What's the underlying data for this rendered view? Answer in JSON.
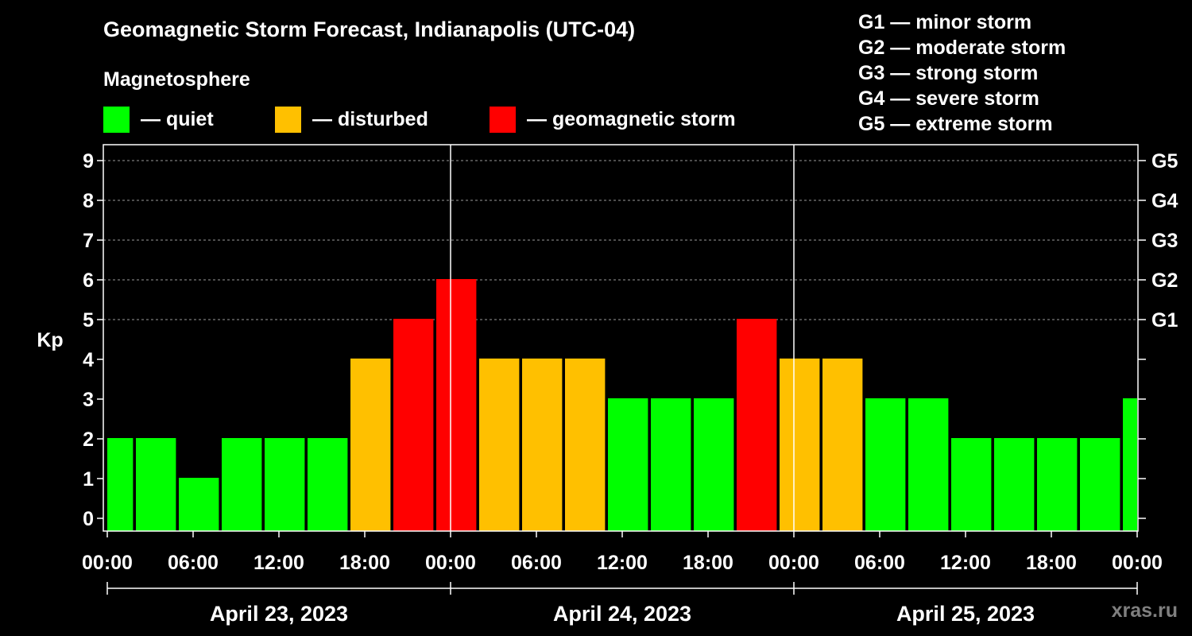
{
  "chart_data": {
    "type": "bar",
    "title": "Geomagnetic Storm Forecast, Indianapolis (UTC-04)",
    "subtitle": "Magnetosphere",
    "ylabel": "Kp",
    "ylim": [
      0,
      9
    ],
    "yticks": [
      "0",
      "1",
      "2",
      "3",
      "4",
      "5",
      "6",
      "7",
      "8",
      "9"
    ],
    "right_ticks": [
      {
        "kp": 5,
        "label": "G1"
      },
      {
        "kp": 6,
        "label": "G2"
      },
      {
        "kp": 7,
        "label": "G3"
      },
      {
        "kp": 8,
        "label": "G4"
      },
      {
        "kp": 9,
        "label": "G5"
      }
    ],
    "legend": [
      {
        "label": "— quiet",
        "color": "#00ff00"
      },
      {
        "label": "— disturbed",
        "color": "#ffc000"
      },
      {
        "label": "— geomagnetic storm",
        "color": "#ff0000"
      }
    ],
    "storm_levels": [
      "G1 — minor storm",
      "G2 — moderate storm",
      "G3 — strong storm",
      "G4 — severe storm",
      "G5 — extreme storm"
    ],
    "x_range_hours": [
      0,
      72
    ],
    "bar_width_hours": 3,
    "xticks": [
      {
        "h": 0,
        "label": "00:00"
      },
      {
        "h": 6,
        "label": "06:00"
      },
      {
        "h": 12,
        "label": "12:00"
      },
      {
        "h": 18,
        "label": "18:00"
      },
      {
        "h": 24,
        "label": "00:00"
      },
      {
        "h": 30,
        "label": "06:00"
      },
      {
        "h": 36,
        "label": "12:00"
      },
      {
        "h": 42,
        "label": "18:00"
      },
      {
        "h": 48,
        "label": "00:00"
      },
      {
        "h": 54,
        "label": "06:00"
      },
      {
        "h": 60,
        "label": "12:00"
      },
      {
        "h": 66,
        "label": "18:00"
      },
      {
        "h": 72,
        "label": "00:00"
      }
    ],
    "days": [
      {
        "start_h": 0,
        "end_h": 24,
        "label": "April 23, 2023"
      },
      {
        "start_h": 24,
        "end_h": 48,
        "label": "April 24, 2023"
      },
      {
        "start_h": 48,
        "end_h": 72,
        "label": "April 25, 2023"
      }
    ],
    "bars": [
      {
        "start_h": 0,
        "end_h": 1.8,
        "kp": 2,
        "status": "quiet"
      },
      {
        "start_h": 2,
        "end_h": 4.8,
        "kp": 2,
        "status": "quiet"
      },
      {
        "start_h": 5,
        "end_h": 7.8,
        "kp": 1,
        "status": "quiet"
      },
      {
        "start_h": 8,
        "end_h": 10.8,
        "kp": 2,
        "status": "quiet"
      },
      {
        "start_h": 11,
        "end_h": 13.8,
        "kp": 2,
        "status": "quiet"
      },
      {
        "start_h": 14,
        "end_h": 16.8,
        "kp": 2,
        "status": "quiet"
      },
      {
        "start_h": 17,
        "end_h": 19.8,
        "kp": 4,
        "status": "disturbed"
      },
      {
        "start_h": 20,
        "end_h": 22.8,
        "kp": 5,
        "status": "storm"
      },
      {
        "start_h": 23,
        "end_h": 25.8,
        "kp": 6,
        "status": "storm"
      },
      {
        "start_h": 26,
        "end_h": 28.8,
        "kp": 4,
        "status": "disturbed"
      },
      {
        "start_h": 29,
        "end_h": 31.8,
        "kp": 4,
        "status": "disturbed"
      },
      {
        "start_h": 32,
        "end_h": 34.8,
        "kp": 4,
        "status": "disturbed"
      },
      {
        "start_h": 35,
        "end_h": 37.8,
        "kp": 3,
        "status": "quiet"
      },
      {
        "start_h": 38,
        "end_h": 40.8,
        "kp": 3,
        "status": "quiet"
      },
      {
        "start_h": 41,
        "end_h": 43.8,
        "kp": 3,
        "status": "quiet"
      },
      {
        "start_h": 44,
        "end_h": 46.8,
        "kp": 5,
        "status": "storm"
      },
      {
        "start_h": 47,
        "end_h": 49.8,
        "kp": 4,
        "status": "disturbed"
      },
      {
        "start_h": 50,
        "end_h": 52.8,
        "kp": 4,
        "status": "disturbed"
      },
      {
        "start_h": 53,
        "end_h": 55.8,
        "kp": 3,
        "status": "quiet"
      },
      {
        "start_h": 56,
        "end_h": 58.8,
        "kp": 3,
        "status": "quiet"
      },
      {
        "start_h": 59,
        "end_h": 61.8,
        "kp": 2,
        "status": "quiet"
      },
      {
        "start_h": 62,
        "end_h": 64.8,
        "kp": 2,
        "status": "quiet"
      },
      {
        "start_h": 65,
        "end_h": 67.8,
        "kp": 2,
        "status": "quiet"
      },
      {
        "start_h": 68,
        "end_h": 70.8,
        "kp": 2,
        "status": "quiet"
      },
      {
        "start_h": 71,
        "end_h": 72,
        "kp": 3,
        "status": "quiet"
      }
    ],
    "status_colors": {
      "quiet": "#00ff00",
      "disturbed": "#ffc000",
      "storm": "#ff0000"
    }
  },
  "watermark": "xras.ru"
}
